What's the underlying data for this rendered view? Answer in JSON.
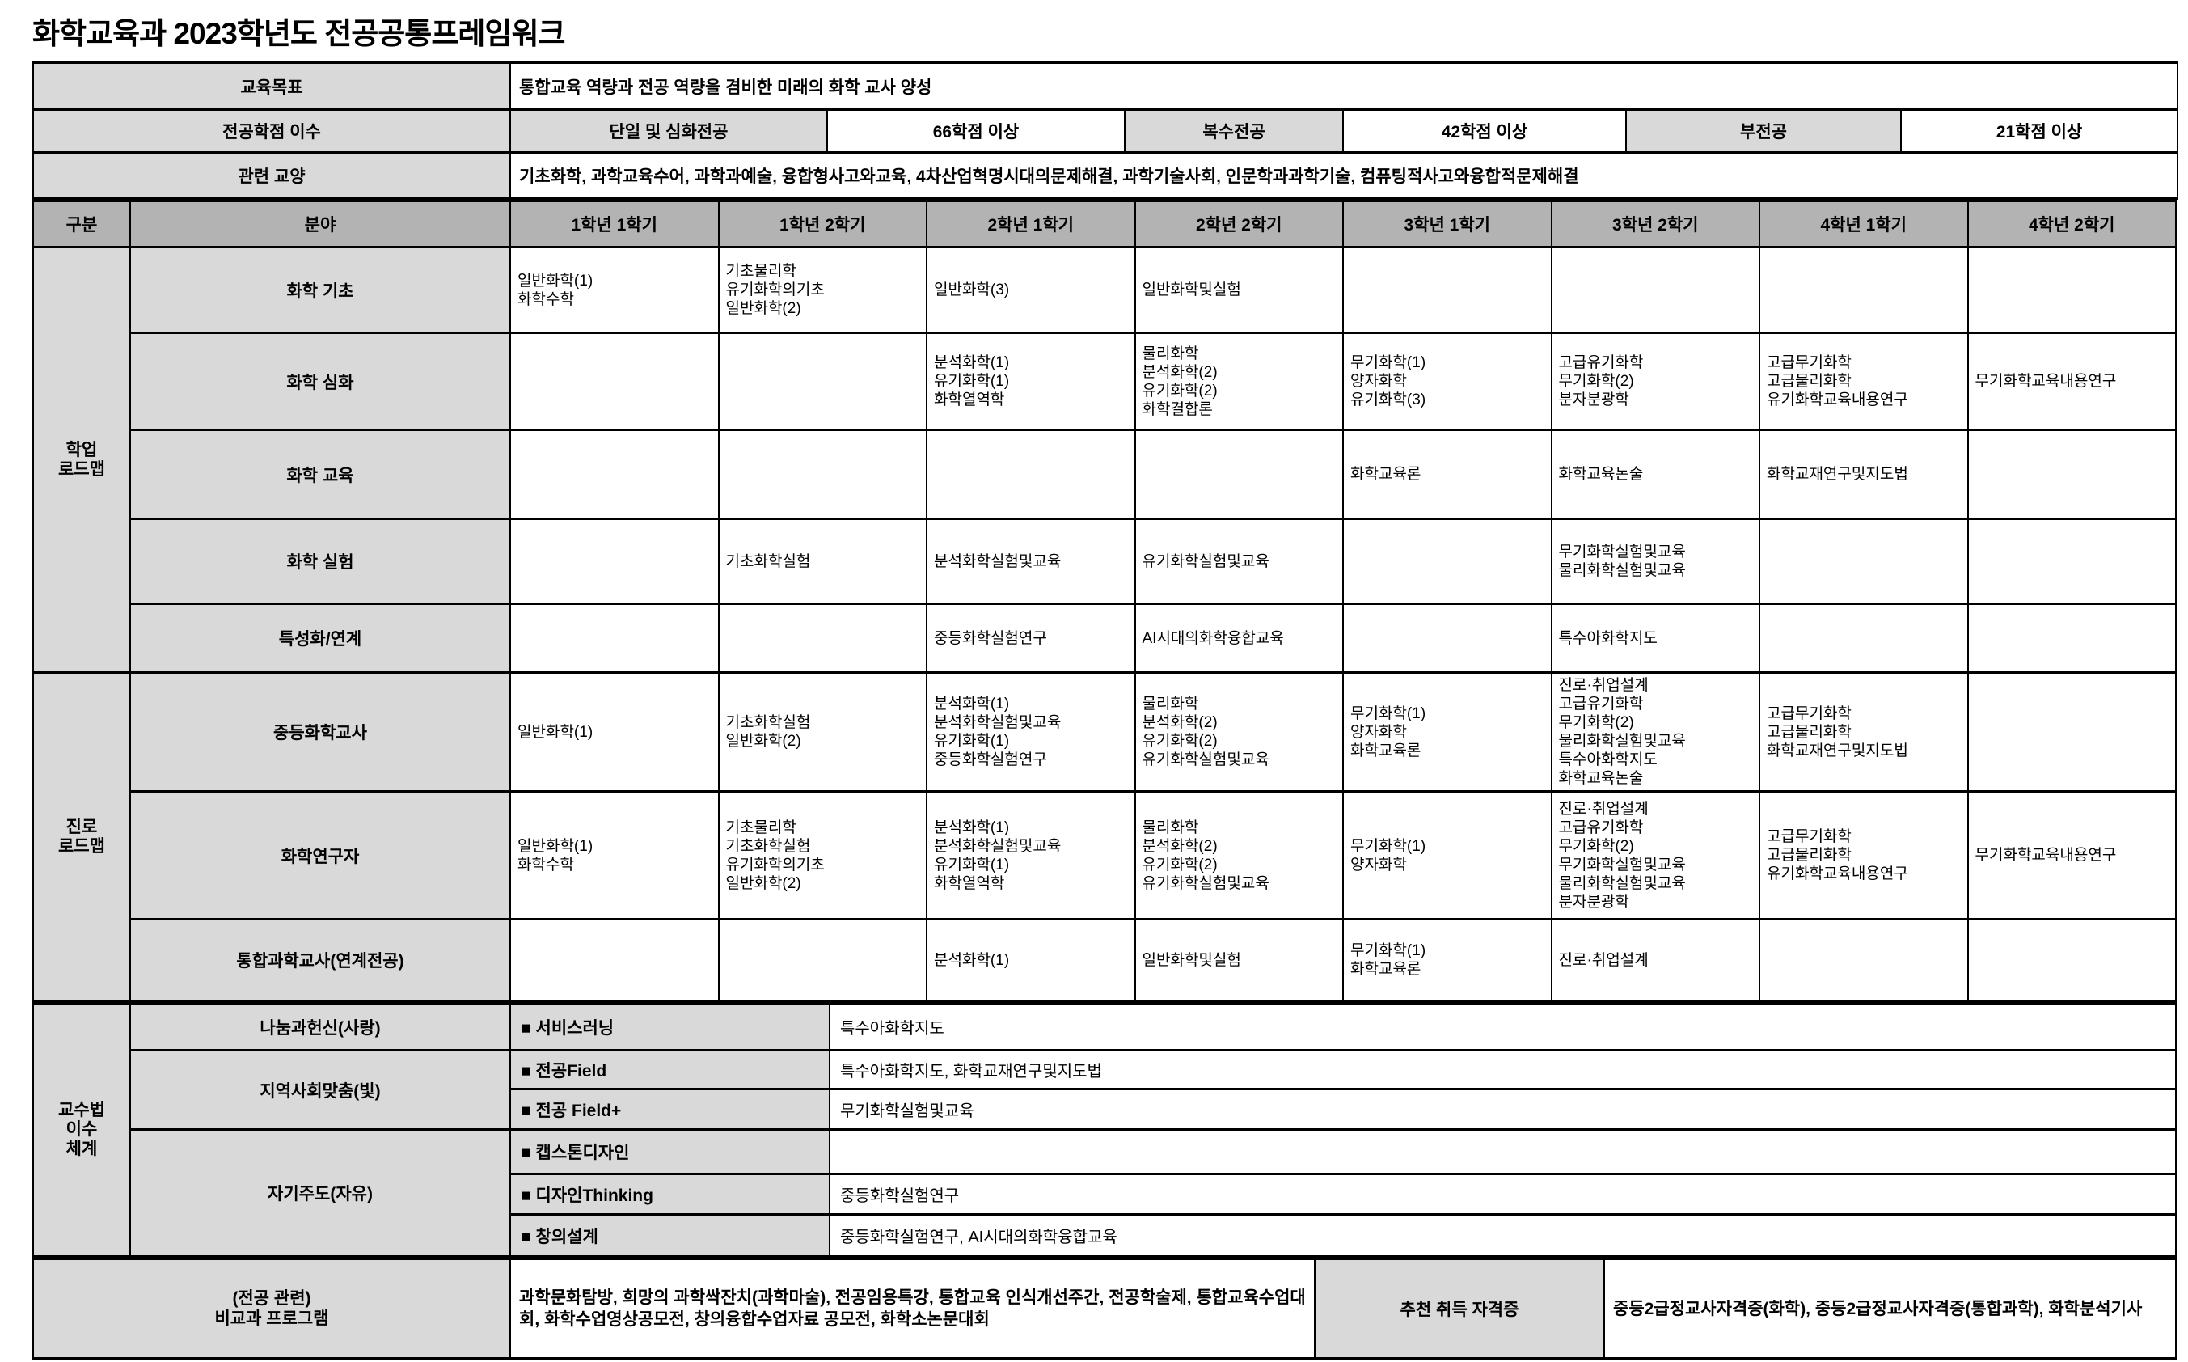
{
  "title": "화학교육과 2023학년도 전공공통프레임워크",
  "colors": {
    "header_bg": "#b3b3b3",
    "label_bg": "#d9d9d9",
    "border": "#000000",
    "page_bg": "#ffffff"
  },
  "top": {
    "goal_label": "교육목표",
    "goal_value": "통합교육 역량과 전공 역량을 겸비한 미래의 화학 교사 양성",
    "credits_label": "전공학점 이수",
    "credits_cells": [
      "단일 및 심화전공",
      "66학점 이상",
      "복수전공",
      "42학점 이상",
      "부전공",
      "21학점 이상"
    ],
    "liberal_label": "관련 교양",
    "liberal_value": "기초화학, 과학교육수어, 과학과예술, 융합형사고와교육, 4차산업혁명시대의문제해결, 과학기술사회, 인문학과과학기술, 컴퓨팅적사고와융합적문제해결"
  },
  "grid": {
    "headers": [
      "구분",
      "분야",
      "1학년 1학기",
      "1학년 2학기",
      "2학년 1학기",
      "2학년 2학기",
      "3학년 1학기",
      "3학년 2학기",
      "4학년 1학기",
      "4학년 2학기"
    ],
    "sections": [
      {
        "group": "학업\n로드맵",
        "rows": [
          {
            "category": "화학 기초",
            "cells": [
              "일반화학(1)\n화학수학",
              "기초물리학\n유기화학의기초\n일반화학(2)",
              "일반화학(3)",
              "일반화학및실험",
              "",
              "",
              "",
              ""
            ]
          },
          {
            "category": "화학 심화",
            "cells": [
              "",
              "",
              "분석화학(1)\n유기화학(1)\n화학열역학",
              "물리화학\n분석화학(2)\n유기화학(2)\n화학결합론",
              "무기화학(1)\n양자화학\n유기화학(3)",
              "고급유기화학\n무기화학(2)\n분자분광학",
              "고급무기화학\n고급물리화학\n유기화학교육내용연구",
              "무기화학교육내용연구"
            ]
          },
          {
            "category": "화학 교육",
            "cells": [
              "",
              "",
              "",
              "",
              "화학교육론",
              "화학교육논술",
              "화학교재연구및지도법",
              ""
            ]
          },
          {
            "category": "화학 실험",
            "cells": [
              "",
              "기초화학실험",
              "분석화학실험및교육",
              "유기화학실험및교육",
              "",
              "무기화학실험및교육\n물리화학실험및교육",
              "",
              ""
            ]
          },
          {
            "category": "특성화/연계",
            "cells": [
              "",
              "",
              "중등화학실험연구",
              "AI시대의화학융합교육",
              "",
              "특수아화학지도",
              "",
              ""
            ]
          }
        ]
      },
      {
        "group": "진로\n로드맵",
        "rows": [
          {
            "category": "중등화학교사",
            "cells": [
              "일반화학(1)",
              "기초화학실험\n일반화학(2)",
              "분석화학(1)\n분석화학실험및교육\n유기화학(1)\n중등화학실험연구",
              "물리화학\n분석화학(2)\n유기화학(2)\n유기화학실험및교육",
              "무기화학(1)\n양자화학\n화학교육론",
              "진로·취업설계\n고급유기화학\n무기화학(2)\n물리화학실험및교육\n특수아화학지도\n화학교육논술",
              "고급무기화학\n고급물리화학\n화학교재연구및지도법",
              ""
            ]
          },
          {
            "category": "화학연구자",
            "cells": [
              "일반화학(1)\n화학수학",
              "기초물리학\n기초화학실험\n유기화학의기초\n일반화학(2)",
              "분석화학(1)\n분석화학실험및교육\n유기화학(1)\n화학열역학",
              "물리화학\n분석화학(2)\n유기화학(2)\n유기화학실험및교육",
              "무기화학(1)\n양자화학",
              "진로·취업설계\n고급유기화학\n무기화학(2)\n무기화학실험및교육\n물리화학실험및교육\n분자분광학",
              "고급무기화학\n고급물리화학\n유기화학교육내용연구",
              "무기화학교육내용연구"
            ]
          },
          {
            "category": "통합과학교사(연계전공)",
            "cells": [
              "",
              "",
              "분석화학(1)",
              "일반화학및실험",
              "무기화학(1)\n화학교육론",
              "진로·취업설계",
              "",
              ""
            ]
          }
        ]
      }
    ]
  },
  "methods": {
    "group": "교수법\n이수\n체계",
    "categories": [
      {
        "label": "나눔과헌신(사랑)",
        "rows": [
          {
            "method": "■ 서비스러닝",
            "value": "특수아화학지도"
          }
        ]
      },
      {
        "label": "지역사회맞춤(빛)",
        "rows": [
          {
            "method": "■ 전공Field",
            "value": "특수아화학지도, 화학교재연구및지도법"
          },
          {
            "method": "■ 전공 Field+",
            "value": "무기화학실험및교육"
          }
        ]
      },
      {
        "label": "자기주도(자유)",
        "rows": [
          {
            "method": "■ 캡스톤디자인",
            "value": ""
          },
          {
            "method": "■ 디자인Thinking",
            "value": "중등화학실험연구"
          },
          {
            "method": "■ 창의설계",
            "value": "중등화학실험연구, AI시대의화학융합교육"
          }
        ]
      }
    ]
  },
  "bottom": {
    "label": "(전공 관련)\n비교과 프로그램",
    "programs": "과학문화탐방, 희망의 과학싹잔치(과학마술), 전공임용특강, 통합교육 인식개선주간, 전공학술제, 통합교육수업대회, 화학수업영상공모전, 창의융합수업자료 공모전, 화학소논문대회",
    "cert_label": "추천 취득 자격증",
    "certs": "중등2급정교사자격증(화학), 중등2급정교사자격증(통합과학), 화학분석기사"
  }
}
